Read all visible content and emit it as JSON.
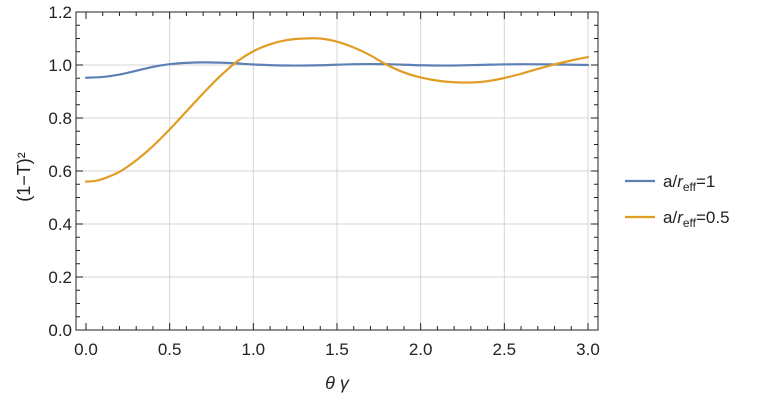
{
  "chart_data": {
    "type": "line",
    "xlabel": "θ γ",
    "ylabel": "(1−T)²",
    "xlim": [
      0.0,
      3.0
    ],
    "ylim": [
      0.0,
      1.2
    ],
    "x_ticks": [
      "0.0",
      "0.5",
      "1.0",
      "1.5",
      "2.0",
      "2.5",
      "3.0"
    ],
    "y_ticks": [
      "0.0",
      "0.2",
      "0.4",
      "0.6",
      "0.8",
      "1.0",
      "1.2"
    ],
    "grid": "vertical lines at major x ticks, horizontal lines at major y ticks",
    "legend_position": "right",
    "series": [
      {
        "name": "a/r_eff=1",
        "legend_parts": {
          "a": "a/",
          "r": "r",
          "sub": "eff",
          "rest": "=1"
        },
        "color": "#5e81b5",
        "x": [
          0.0,
          0.1,
          0.2,
          0.3,
          0.4,
          0.5,
          0.6,
          0.7,
          0.8,
          0.9,
          1.0,
          1.2,
          1.4,
          1.6,
          1.8,
          2.0,
          2.2,
          2.4,
          2.6,
          2.8,
          3.0
        ],
        "y": [
          0.952,
          0.955,
          0.964,
          0.978,
          0.993,
          1.003,
          1.008,
          1.01,
          1.009,
          1.006,
          1.002,
          0.998,
          0.999,
          1.003,
          1.003,
          0.999,
          0.998,
          1.001,
          1.003,
          1.002,
          1.0
        ]
      },
      {
        "name": "a/r_eff=0.5",
        "legend_parts": {
          "a": "a/",
          "r": "r",
          "sub": "eff",
          "rest": "=0.5"
        },
        "color": "#e19c24",
        "x": [
          0.0,
          0.05,
          0.1,
          0.2,
          0.3,
          0.4,
          0.5,
          0.6,
          0.7,
          0.8,
          0.9,
          1.0,
          1.1,
          1.2,
          1.3,
          1.4,
          1.5,
          1.6,
          1.7,
          1.8,
          1.9,
          2.0,
          2.1,
          2.2,
          2.3,
          2.4,
          2.5,
          2.6,
          2.7,
          2.8,
          2.9,
          3.0
        ],
        "y": [
          0.56,
          0.562,
          0.57,
          0.597,
          0.64,
          0.694,
          0.757,
          0.825,
          0.893,
          0.957,
          1.012,
          1.052,
          1.078,
          1.094,
          1.1,
          1.1,
          1.088,
          1.066,
          1.036,
          1.0,
          0.972,
          0.953,
          0.941,
          0.935,
          0.934,
          0.939,
          0.951,
          0.967,
          0.985,
          1.002,
          1.017,
          1.03
        ]
      }
    ]
  }
}
